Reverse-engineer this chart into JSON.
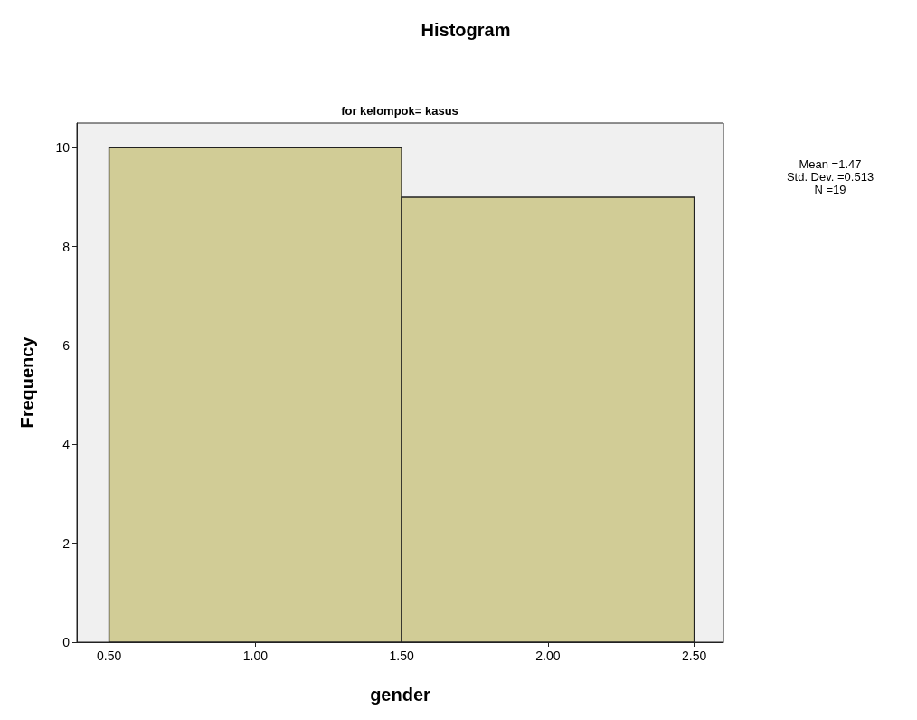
{
  "chart_data": {
    "type": "histogram",
    "title": "Histogram",
    "subtitle": "for kelompok= kasus",
    "xlabel": "gender",
    "ylabel": "Frequency",
    "bins": [
      0.5,
      1.5,
      2.5
    ],
    "values": [
      10,
      9
    ],
    "color": "#d1cc96",
    "xlim": [
      0.39,
      2.6
    ],
    "xticks": [
      {
        "value": 0.5,
        "label": "0.50"
      },
      {
        "value": 1,
        "label": "1.00"
      },
      {
        "value": 1.5,
        "label": "1.50"
      },
      {
        "value": 2,
        "label": "2.00"
      },
      {
        "value": 2.5,
        "label": "2.50"
      }
    ],
    "ylim": [
      0,
      10.5
    ],
    "yticks": [
      0,
      2,
      4,
      6,
      8,
      10
    ],
    "grid": false,
    "annotations": [
      "Mean =1.47",
      "Std. Dev. =0.513",
      "N =19"
    ]
  }
}
